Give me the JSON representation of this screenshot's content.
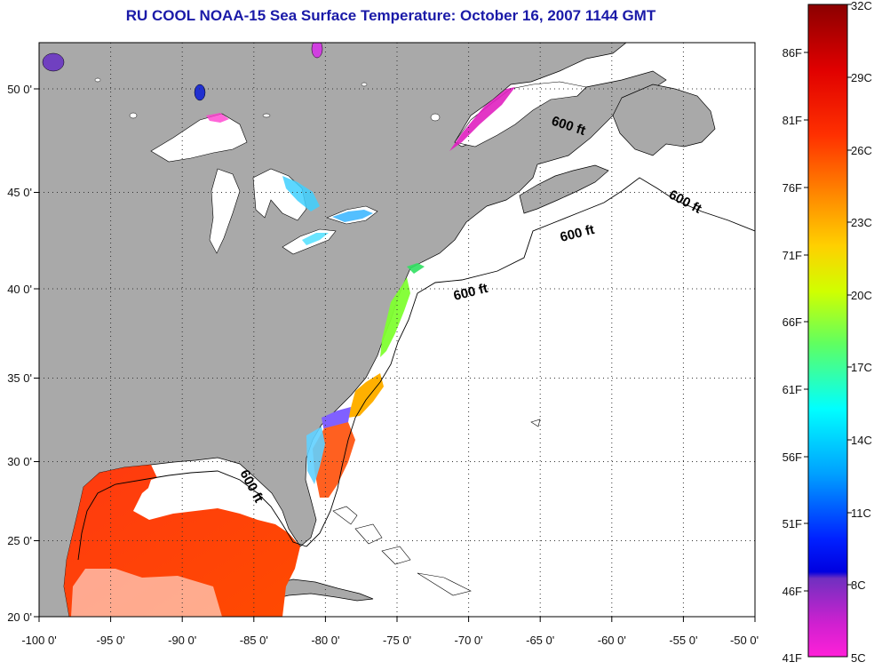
{
  "title": "RU COOL  NOAA-15  Sea Surface Temperature:  October 16, 2007 1144 GMT",
  "map": {
    "lon_ticks": [
      "-100 0'",
      "-95 0'",
      "-90 0'",
      "-85 0'",
      "-80 0'",
      "-75 0'",
      "-70 0'",
      "-65 0'",
      "-60 0'",
      "-55 0'",
      "-50 0'"
    ],
    "lat_ticks": [
      "50 0'",
      "45 0'",
      "40 0'",
      "35 0'",
      "30 0'",
      "25 0'",
      "20 0'"
    ],
    "contour_labels": [
      "600 ft",
      "600 ft",
      "600 ft",
      "600 ft",
      "600 ft"
    ],
    "colors": {
      "land": "#a9a9a9",
      "ocean_no_data": "#ffffff",
      "frame": "#000000"
    }
  },
  "colorbar": {
    "fahrenheit_labels": [
      "86F",
      "81F",
      "76F",
      "71F",
      "66F",
      "61F",
      "56F",
      "51F",
      "46F",
      "41F"
    ],
    "celsius_labels": [
      "32C",
      "29C",
      "26C",
      "23C",
      "20C",
      "17C",
      "14C",
      "11C",
      "8C",
      "5C"
    ],
    "colors_top_to_bottom": [
      "#8b0000",
      "#ff2020",
      "#ff8000",
      "#ffd000",
      "#c8ff00",
      "#40ff80",
      "#00ffff",
      "#0090ff",
      "#0000ff",
      "#8040c0",
      "#ff20d0"
    ]
  }
}
